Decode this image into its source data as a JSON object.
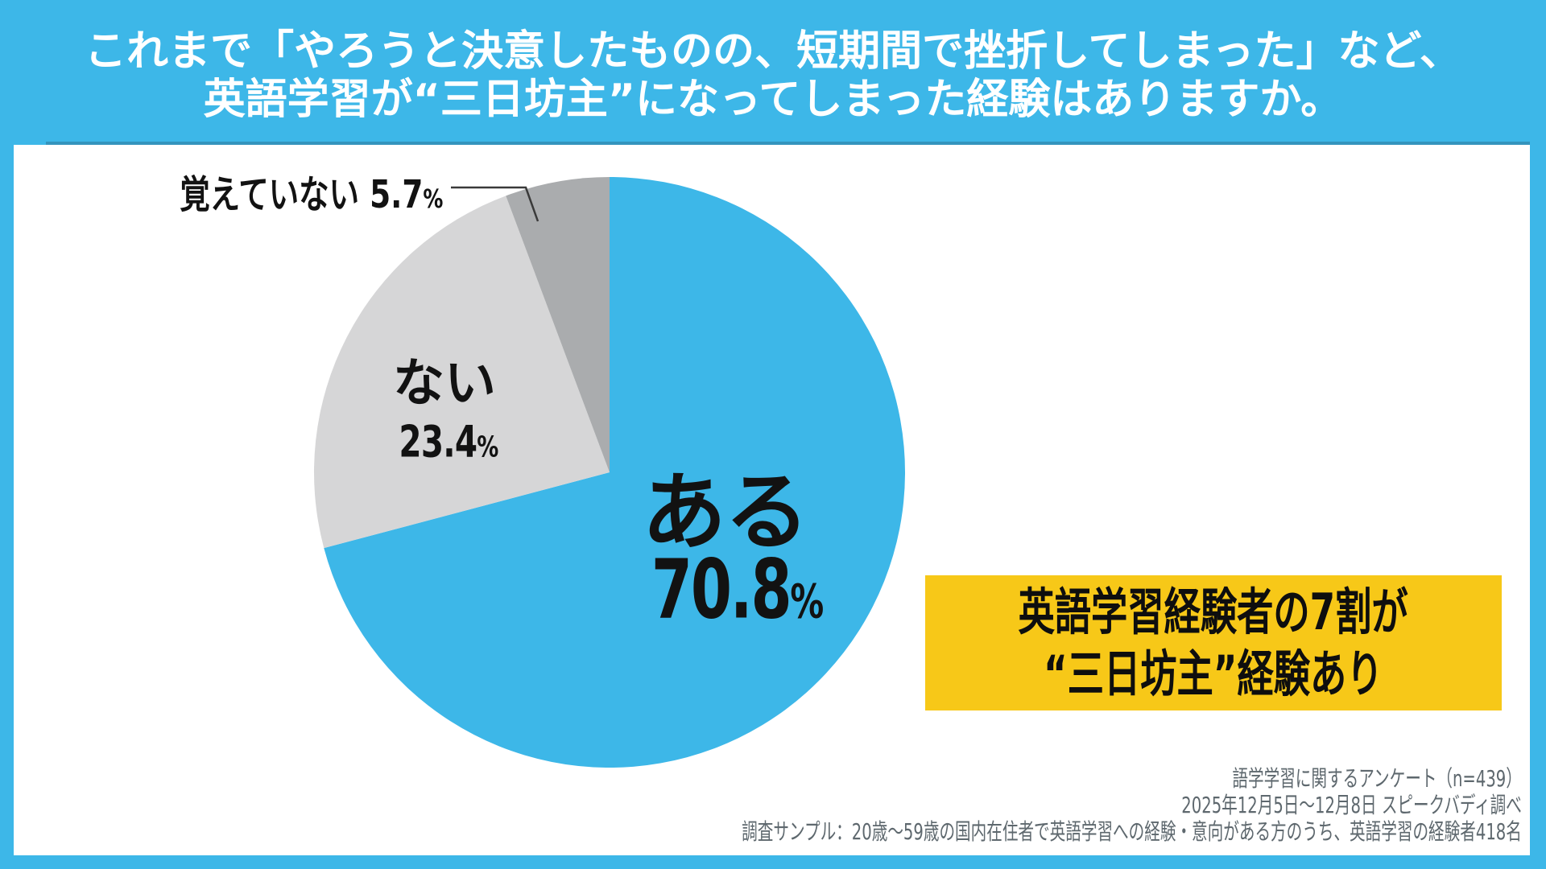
{
  "header": {
    "line1": "これまで「やろうと決意したものの、短期間で挫折してしまった」など、",
    "line2": "英語学習が“三日坊主”になってしまった経験はありますか。"
  },
  "chart_data": {
    "type": "pie",
    "title": "これまで「やろうと決意したものの、短期間で挫折してしまった」など、英語学習が“三日坊主”になってしまった経験はありますか。",
    "categories": [
      "ある",
      "ない",
      "覚えていない"
    ],
    "values": [
      70.8,
      23.4,
      5.7
    ],
    "slices": [
      {
        "label": "ある",
        "value": 70.8,
        "display": "70.8",
        "color": "#3DB7E8"
      },
      {
        "label": "ない",
        "value": 23.4,
        "display": "23.4",
        "color": "#D6D6D7"
      },
      {
        "label": "覚えていない",
        "value": 5.7,
        "display": "5.7",
        "color": "#AAACAE"
      }
    ],
    "percent_sign": "%",
    "start_angle": "12-oclock",
    "direction": "clockwise",
    "legend": "none"
  },
  "highlight": {
    "line1": "英語学習経験者の7割が",
    "line2": "“三日坊主”経験あり",
    "background": "#F7C818"
  },
  "source": {
    "line1": "語学学習に関するアンケート（n=439）",
    "line2": "2025年12月5日〜12月8日 スピークバディ調べ",
    "line3": "調査サンプル：20歳〜59歳の国内在住者で英語学習への経験・意向がある方のうち、英語学習の経験者418名"
  },
  "colors": {
    "page_blue": "#3DB7E8",
    "panel_white": "#ffffff",
    "slice_yes_blue": "#3DB7E8",
    "slice_no_gray": "#D6D6D7",
    "slice_dontremember_gray": "#AAACAE",
    "highlight_yellow": "#F7C818",
    "text_black": "#121212",
    "source_gray": "#5E686E"
  }
}
